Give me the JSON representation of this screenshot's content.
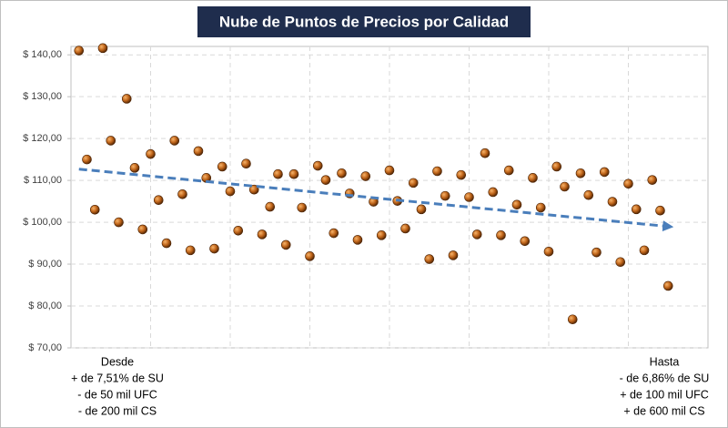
{
  "chart_data": {
    "type": "scatter",
    "title": "Nube de Puntos de Precios por Calidad",
    "x": [
      1,
      2,
      3,
      4,
      5,
      6,
      7,
      8,
      9,
      10,
      11,
      12,
      13,
      14,
      15,
      16,
      17,
      18,
      19,
      20,
      21,
      22,
      23,
      24,
      25,
      26,
      27,
      28,
      29,
      30,
      31,
      32,
      33,
      34,
      35,
      36,
      37,
      38,
      39,
      40,
      41,
      42,
      43,
      44,
      45,
      46,
      47,
      48,
      49,
      50,
      51,
      52,
      53,
      54,
      55,
      56,
      57,
      58,
      59,
      60,
      61,
      62,
      63,
      64,
      65,
      66,
      67,
      68,
      69,
      70,
      71,
      72,
      73,
      74,
      75
    ],
    "values": [
      141,
      115,
      103,
      141.6,
      119.5,
      100,
      129.5,
      113,
      98.3,
      116.3,
      105.3,
      95,
      119.5,
      106.7,
      93.3,
      117,
      110.6,
      93.7,
      113.3,
      107.4,
      98,
      114,
      107.8,
      97.1,
      103.7,
      111.5,
      94.6,
      111.5,
      103.5,
      91.9,
      113.5,
      110.1,
      97.4,
      111.7,
      106.9,
      95.8,
      111,
      104.9,
      96.9,
      112.4,
      105.1,
      98.5,
      109.4,
      103.1,
      91.2,
      112.2,
      106.3,
      92.1,
      111.3,
      106,
      97.1,
      116.5,
      107.2,
      96.9,
      112.4,
      104.2,
      95.5,
      110.6,
      103.5,
      93,
      113.3,
      108.5,
      76.8,
      111.7,
      106.5,
      92.8,
      112,
      104.9,
      90.5,
      109.2,
      103.1,
      93.3,
      110.1,
      102.8,
      84.8
    ],
    "color": "#c0651a",
    "trendline": {
      "x": [
        1,
        75
      ],
      "y": [
        112.7,
        99
      ],
      "color": "#4a7ebb"
    },
    "xlim": [
      0,
      80
    ],
    "xticks": [
      10,
      20,
      30,
      40,
      50,
      60,
      70
    ],
    "ylim": [
      70,
      142
    ],
    "yticks": [
      {
        "value": 70,
        "label": "$ 70,00"
      },
      {
        "value": 80,
        "label": "$ 80,00"
      },
      {
        "value": 90,
        "label": "$ 90,00"
      },
      {
        "value": 100,
        "label": "$ 100,00"
      },
      {
        "value": 110,
        "label": "$ 110,00"
      },
      {
        "value": 120,
        "label": "$ 120,00"
      },
      {
        "value": 130,
        "label": "$ 130,00"
      },
      {
        "value": 140,
        "label": "$ 140,00"
      }
    ],
    "grid": true,
    "left_note": [
      "Desde",
      "+ de 7,51% de SU",
      "- de 50 mil UFC",
      "- de 200 mil CS"
    ],
    "right_note": [
      "Hasta",
      "- de 6,86% de SU",
      "+ de 100 mil UFC",
      "+ de 600 mil CS"
    ]
  }
}
